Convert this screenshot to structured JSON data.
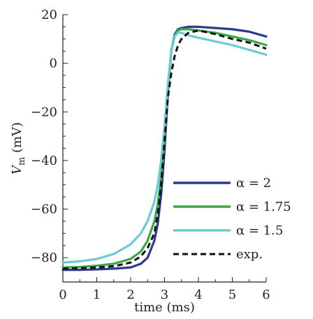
{
  "chart_data": {
    "type": "line",
    "xlabel": "time (ms)",
    "ylabel_main": "V",
    "ylabel_sub": "m",
    "ylabel_unit": "(mV)",
    "xlim": [
      0,
      6
    ],
    "ylim": [
      -90,
      20
    ],
    "xticks": [
      0,
      1,
      2,
      3,
      4,
      5,
      6
    ],
    "yticks": [
      20,
      0,
      -20,
      -40,
      -60,
      -80
    ],
    "grid": false,
    "legend_position": "lower-right",
    "series": [
      {
        "name": "α = 2",
        "color": "#2b3a8f",
        "dash": "solid",
        "x": [
          0,
          0.5,
          1.0,
          1.5,
          2.0,
          2.3,
          2.5,
          2.7,
          2.8,
          2.9,
          3.0,
          3.1,
          3.2,
          3.3,
          3.4,
          3.5,
          3.7,
          4.0,
          4.5,
          5.0,
          5.5,
          6.0
        ],
        "y": [
          -85,
          -85,
          -84.8,
          -84.5,
          -84,
          -82.5,
          -80,
          -73,
          -66,
          -54,
          -36,
          -12,
          5,
          12,
          14,
          14.5,
          15,
          15,
          14.5,
          14,
          13,
          11
        ]
      },
      {
        "name": "α = 1.75",
        "color": "#3aa84a",
        "dash": "solid",
        "x": [
          0,
          0.5,
          1.0,
          1.5,
          2.0,
          2.3,
          2.5,
          2.7,
          2.8,
          2.9,
          3.0,
          3.1,
          3.2,
          3.3,
          3.4,
          3.5,
          3.7,
          4.0,
          4.5,
          5.0,
          5.5,
          6.0
        ],
        "y": [
          -84,
          -83.8,
          -83.3,
          -82.5,
          -80.5,
          -77.5,
          -73,
          -65,
          -58,
          -47,
          -32,
          -10,
          5,
          11.5,
          13.5,
          14,
          14,
          13.5,
          12.5,
          11,
          9.5,
          7.5
        ]
      },
      {
        "name": "α = 1.5",
        "color": "#6ccad6",
        "dash": "solid",
        "x": [
          0,
          0.5,
          1.0,
          1.5,
          2.0,
          2.3,
          2.5,
          2.7,
          2.8,
          2.9,
          3.0,
          3.1,
          3.2,
          3.3,
          3.4,
          3.5,
          3.7,
          4.0,
          4.5,
          5.0,
          5.5,
          6.0
        ],
        "y": [
          -82,
          -81.5,
          -80.5,
          -78.5,
          -74.5,
          -70,
          -65,
          -57,
          -50,
          -40,
          -26,
          -8,
          5,
          11,
          12.5,
          12.5,
          11.5,
          10.5,
          9,
          7.5,
          5.5,
          3.5
        ]
      },
      {
        "name": "exp.",
        "color": "#111111",
        "dash": "dashed",
        "x": [
          0,
          0.5,
          1.0,
          1.5,
          2.0,
          2.3,
          2.5,
          2.7,
          2.8,
          2.9,
          3.0,
          3.1,
          3.2,
          3.3,
          3.4,
          3.5,
          3.7,
          4.0,
          4.5,
          5.0,
          5.5,
          6.0
        ],
        "y": [
          -84.5,
          -84.3,
          -84,
          -83.5,
          -82,
          -79.5,
          -76,
          -70,
          -62,
          -50,
          -32,
          -14,
          -4,
          3,
          7.5,
          10,
          12.5,
          13.5,
          12,
          10,
          8.5,
          6
        ]
      }
    ]
  }
}
